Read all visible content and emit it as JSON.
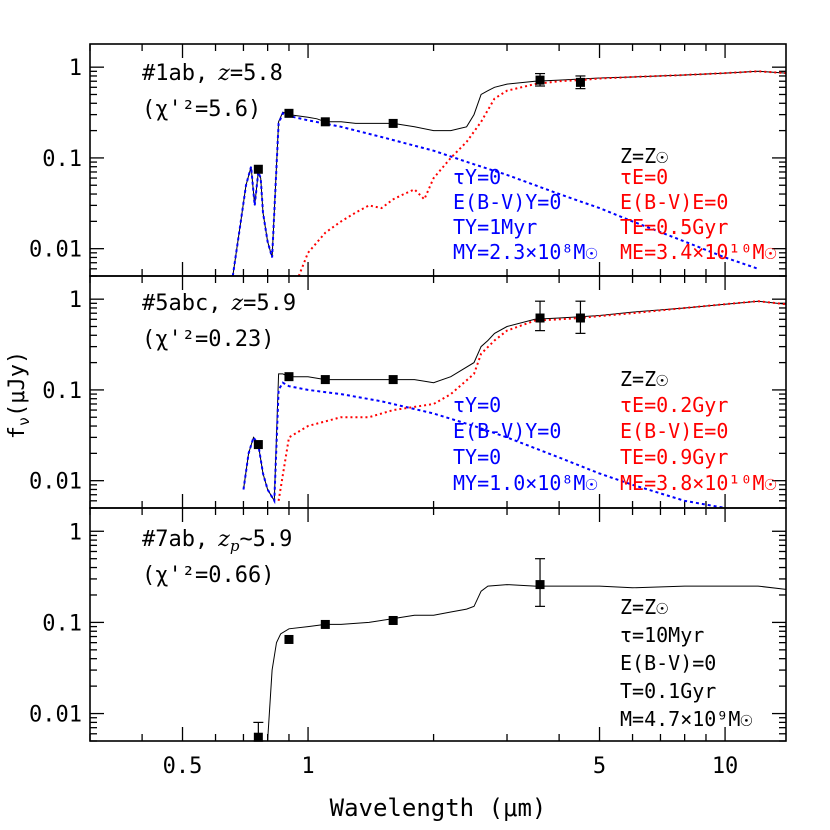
{
  "figure": {
    "xlabel": "Wavelength (μm)",
    "ylabel": "f",
    "ylabel_sub": "ν",
    "ylabel_unit": "(μJy)"
  },
  "chart_data": [
    {
      "type": "line",
      "id": "p1",
      "title_obj": "#1ab,",
      "title_z": "z",
      "title_rel": "=5.8",
      "chi": "(χ'²=5.6)",
      "xscale": "log",
      "yscale": "log",
      "xlim": [
        0.3,
        14
      ],
      "ylim": [
        0.005,
        1.8
      ],
      "xticks": [
        {
          "v": 0.5,
          "label": "0.5"
        },
        {
          "v": 1,
          "label": "1"
        },
        {
          "v": 5,
          "label": "5"
        },
        {
          "v": 10,
          "label": "10"
        }
      ],
      "yticks": [
        {
          "v": 1,
          "label": "1"
        },
        {
          "v": 0.1,
          "label": "0.1"
        },
        {
          "v": 0.01,
          "label": "0.01"
        }
      ],
      "points_filled": [
        [
          0.76,
          0.075
        ],
        [
          0.9,
          0.31
        ],
        [
          1.1,
          0.25
        ],
        [
          1.6,
          0.24
        ],
        [
          3.6,
          0.72
        ],
        [
          4.5,
          0.68
        ]
      ],
      "points_errors": [
        [
          3.6,
          0.62,
          0.85
        ],
        [
          4.5,
          0.58,
          0.8
        ]
      ],
      "series": [
        {
          "name": "total",
          "color": "#000000",
          "dash": "none",
          "x": [
            0.66,
            0.69,
            0.71,
            0.73,
            0.745,
            0.76,
            0.77,
            0.78,
            0.8,
            0.82,
            0.85,
            0.87,
            0.9,
            1.0,
            1.05,
            1.1,
            1.2,
            1.3,
            1.5,
            1.6,
            1.8,
            2.0,
            2.2,
            2.4,
            2.5,
            2.6,
            2.7,
            2.8,
            3.0,
            3.5,
            4.0,
            4.5,
            5.0,
            6.0,
            8.0,
            10.0,
            12.0,
            14.0
          ],
          "y": [
            0.005,
            0.02,
            0.05,
            0.08,
            0.03,
            0.07,
            0.06,
            0.025,
            0.012,
            0.008,
            0.25,
            0.32,
            0.3,
            0.28,
            0.27,
            0.25,
            0.25,
            0.24,
            0.24,
            0.24,
            0.22,
            0.2,
            0.2,
            0.22,
            0.3,
            0.5,
            0.55,
            0.6,
            0.65,
            0.7,
            0.72,
            0.74,
            0.76,
            0.78,
            0.82,
            0.86,
            0.9,
            0.86
          ]
        },
        {
          "name": "young",
          "color": "#0000ff",
          "dash": "3 3",
          "x": [
            0.66,
            0.69,
            0.71,
            0.73,
            0.745,
            0.76,
            0.77,
            0.78,
            0.8,
            0.82,
            0.85,
            0.87,
            0.9,
            1.0,
            1.2,
            1.5,
            2.0,
            2.5,
            3.0,
            4.0,
            5.0,
            6.0,
            8.0,
            10.0,
            12.0
          ],
          "y": [
            0.005,
            0.02,
            0.05,
            0.08,
            0.03,
            0.07,
            0.06,
            0.025,
            0.012,
            0.008,
            0.24,
            0.31,
            0.29,
            0.26,
            0.22,
            0.17,
            0.12,
            0.085,
            0.065,
            0.04,
            0.028,
            0.02,
            0.012,
            0.008,
            0.006
          ]
        },
        {
          "name": "old",
          "color": "#ff0000",
          "dash": "2 3",
          "x": [
            0.95,
            1.0,
            1.1,
            1.2,
            1.3,
            1.4,
            1.5,
            1.6,
            1.7,
            1.8,
            1.9,
            2.0,
            2.2,
            2.4,
            2.6,
            2.8,
            3.0,
            3.5,
            4.0,
            4.5,
            5.0,
            6.0,
            8.0,
            10.0,
            12.0,
            14.0
          ],
          "y": [
            0.005,
            0.009,
            0.015,
            0.02,
            0.025,
            0.03,
            0.028,
            0.035,
            0.04,
            0.045,
            0.035,
            0.06,
            0.1,
            0.15,
            0.25,
            0.45,
            0.55,
            0.65,
            0.7,
            0.72,
            0.75,
            0.78,
            0.82,
            0.86,
            0.9,
            0.86
          ]
        }
      ],
      "annotations": {
        "young": [
          "τY=0",
          "E(B-V)Y=0",
          "TY=1Myr",
          "MY=2.3×10⁸M☉"
        ],
        "old": [
          "τE=0",
          "E(B-V)E=0",
          "TE=0.5Gyr",
          "ME=3.4×10¹⁰M☉"
        ],
        "metal": "Z=Z☉"
      }
    },
    {
      "type": "line",
      "id": "p2",
      "title_obj": "#5abc,",
      "title_z": "z",
      "title_rel": "=5.9",
      "chi": "(χ'²=0.23)",
      "xscale": "log",
      "yscale": "log",
      "xlim": [
        0.3,
        14
      ],
      "ylim": [
        0.005,
        1.8
      ],
      "xticks": [
        {
          "v": 0.5,
          "label": "0.5"
        },
        {
          "v": 1,
          "label": "1"
        },
        {
          "v": 5,
          "label": "5"
        },
        {
          "v": 10,
          "label": "10"
        }
      ],
      "yticks": [
        {
          "v": 1,
          "label": "1"
        },
        {
          "v": 0.1,
          "label": "0.1"
        },
        {
          "v": 0.01,
          "label": "0.01"
        }
      ],
      "points_filled": [
        [
          0.76,
          0.025
        ],
        [
          0.9,
          0.14
        ],
        [
          1.1,
          0.13
        ],
        [
          1.6,
          0.13
        ],
        [
          3.6,
          0.62
        ],
        [
          4.5,
          0.62
        ]
      ],
      "points_errors": [
        [
          3.6,
          0.45,
          0.95
        ],
        [
          4.5,
          0.42,
          0.95
        ]
      ],
      "series": [
        {
          "name": "total",
          "color": "#000000",
          "dash": "none",
          "x": [
            0.7,
            0.72,
            0.74,
            0.76,
            0.78,
            0.8,
            0.83,
            0.85,
            0.87,
            0.9,
            1.0,
            1.1,
            1.2,
            1.5,
            1.8,
            2.0,
            2.2,
            2.5,
            2.6,
            2.7,
            2.8,
            3.0,
            3.5,
            4.0,
            4.5,
            5.0,
            6.0,
            8.0,
            10.0,
            12.0,
            14.0
          ],
          "y": [
            0.008,
            0.02,
            0.03,
            0.025,
            0.012,
            0.008,
            0.006,
            0.15,
            0.15,
            0.14,
            0.14,
            0.13,
            0.13,
            0.13,
            0.13,
            0.12,
            0.14,
            0.2,
            0.3,
            0.35,
            0.42,
            0.5,
            0.6,
            0.62,
            0.64,
            0.66,
            0.72,
            0.8,
            0.88,
            0.95,
            0.88
          ]
        },
        {
          "name": "young",
          "color": "#0000ff",
          "dash": "3 3",
          "x": [
            0.7,
            0.72,
            0.74,
            0.76,
            0.78,
            0.8,
            0.83,
            0.85,
            0.87,
            0.9,
            1.0,
            1.2,
            1.5,
            2.0,
            2.5,
            3.0,
            4.0,
            5.0,
            6.0,
            8.0,
            10.0
          ],
          "y": [
            0.008,
            0.02,
            0.03,
            0.025,
            0.012,
            0.008,
            0.006,
            0.1,
            0.12,
            0.11,
            0.1,
            0.09,
            0.075,
            0.055,
            0.04,
            0.03,
            0.018,
            0.012,
            0.009,
            0.006,
            0.005
          ]
        },
        {
          "name": "old",
          "color": "#ff0000",
          "dash": "2 3",
          "x": [
            0.85,
            0.9,
            1.0,
            1.1,
            1.2,
            1.4,
            1.6,
            1.8,
            2.0,
            2.2,
            2.5,
            2.6,
            2.8,
            3.0,
            3.5,
            4.0,
            4.5,
            5.0,
            6.0,
            8.0,
            10.0,
            12.0,
            14.0
          ],
          "y": [
            0.006,
            0.03,
            0.04,
            0.045,
            0.05,
            0.05,
            0.06,
            0.065,
            0.07,
            0.09,
            0.15,
            0.25,
            0.35,
            0.45,
            0.58,
            0.6,
            0.62,
            0.65,
            0.7,
            0.8,
            0.88,
            0.95,
            0.88
          ]
        }
      ],
      "annotations": {
        "young": [
          "τY=0",
          "E(B-V)Y=0",
          "TY=0",
          "MY=1.0×10⁸M☉"
        ],
        "old": [
          "τE=0.2Gyr",
          "E(B-V)E=0",
          "TE=0.9Gyr",
          "ME=3.8×10¹⁰M☉"
        ],
        "metal": "Z=Z☉"
      }
    },
    {
      "type": "line",
      "id": "p3",
      "title_obj": "#7ab,",
      "title_z": "z",
      "title_zsub": "p",
      "title_rel": "~5.9",
      "chi": "(χ'²=0.66)",
      "xscale": "log",
      "yscale": "log",
      "xlim": [
        0.3,
        14
      ],
      "ylim": [
        0.005,
        1.8
      ],
      "xticks": [
        {
          "v": 0.5,
          "label": "0.5"
        },
        {
          "v": 1,
          "label": "1"
        },
        {
          "v": 5,
          "label": "5"
        },
        {
          "v": 10,
          "label": "10"
        }
      ],
      "yticks": [
        {
          "v": 1,
          "label": "1"
        },
        {
          "v": 0.1,
          "label": "0.1"
        },
        {
          "v": 0.01,
          "label": "0.01"
        }
      ],
      "points_filled": [
        [
          0.76,
          0.0055
        ],
        [
          0.9,
          0.065
        ],
        [
          1.1,
          0.095
        ],
        [
          1.6,
          0.105
        ],
        [
          3.6,
          0.26
        ]
      ],
      "points_errors": [
        [
          0.76,
          0.005,
          0.008
        ],
        [
          3.6,
          0.15,
          0.5
        ]
      ],
      "series": [
        {
          "name": "total",
          "color": "#000000",
          "dash": "none",
          "x": [
            0.8,
            0.82,
            0.84,
            0.86,
            0.9,
            1.0,
            1.1,
            1.2,
            1.4,
            1.6,
            1.8,
            2.0,
            2.2,
            2.4,
            2.5,
            2.6,
            2.7,
            3.0,
            3.5,
            4.0,
            5.0,
            6.0,
            8.0,
            10.0,
            12.0,
            14.0
          ],
          "y": [
            0.005,
            0.03,
            0.06,
            0.075,
            0.085,
            0.09,
            0.095,
            0.095,
            0.1,
            0.11,
            0.12,
            0.12,
            0.13,
            0.14,
            0.15,
            0.22,
            0.25,
            0.26,
            0.25,
            0.25,
            0.25,
            0.24,
            0.25,
            0.25,
            0.25,
            0.23
          ]
        }
      ],
      "annotations": {
        "metal": "Z=Z☉",
        "params": [
          "τ=10Myr",
          "E(B-V)=0",
          "T=0.1Gyr",
          "M=4.7×10⁹M☉"
        ]
      }
    }
  ]
}
